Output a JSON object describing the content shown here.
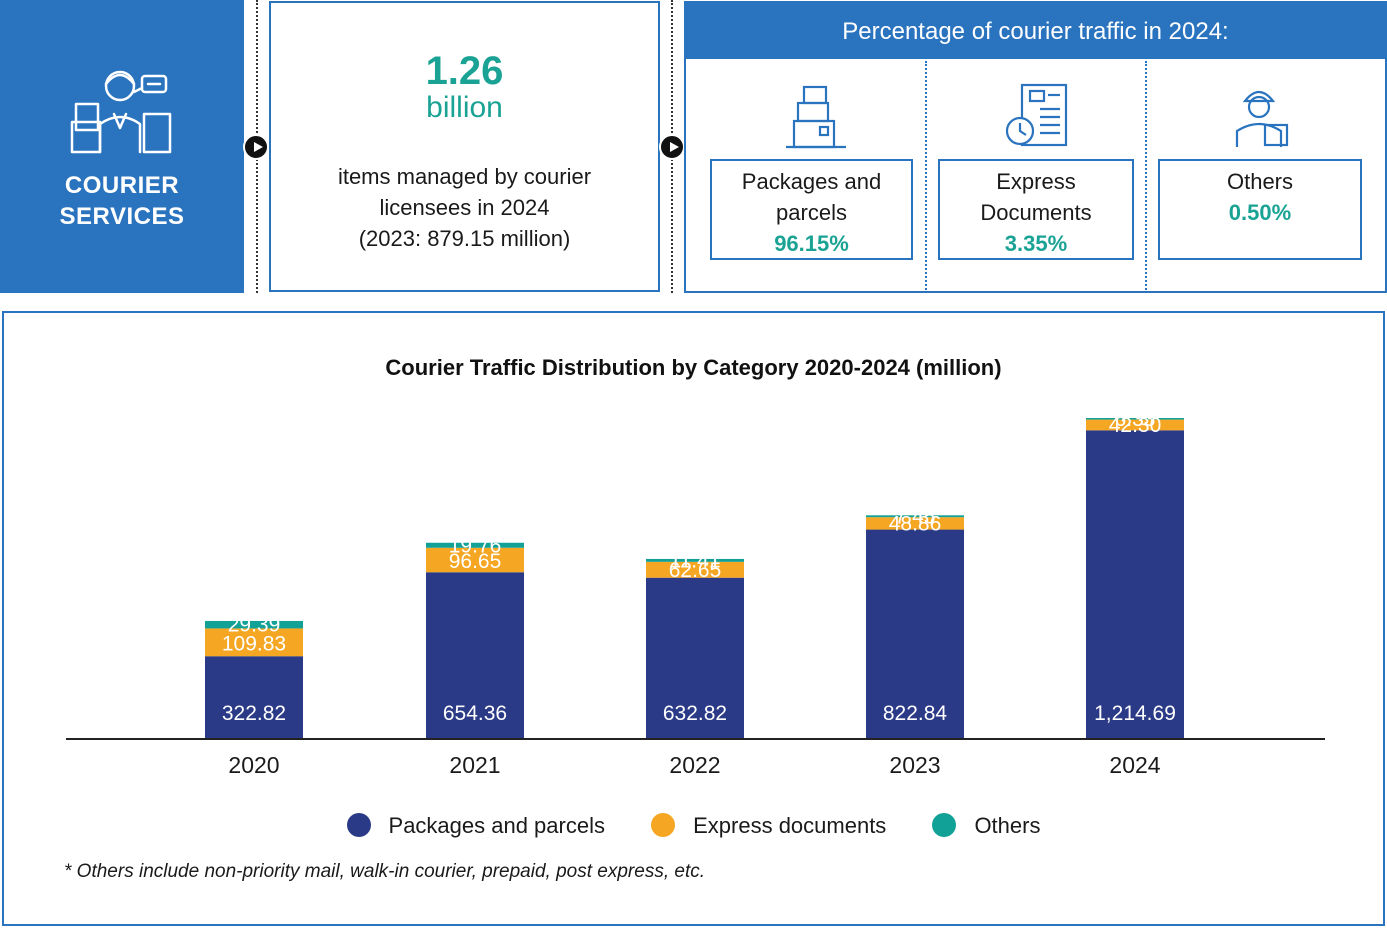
{
  "panel": {
    "title_line1": "COURIER",
    "title_line2": "SERVICES"
  },
  "stat": {
    "value": "1.26",
    "unit": "billion",
    "description": "items managed by courier\nlicensees in 2024\n(2023: 879.15 million)"
  },
  "percentage": {
    "header": "Percentage of courier traffic in 2024:",
    "cards": [
      {
        "label": "Packages and parcels",
        "value": "96.15%",
        "icon": "package-stack-icon"
      },
      {
        "label": "Express Documents",
        "value": "3.35%",
        "icon": "document-clock-icon"
      },
      {
        "label": "Others",
        "value": "0.50%",
        "icon": "courier-person-icon"
      }
    ]
  },
  "colors": {
    "brand_blue": "#2a73bf",
    "teal": "#1aa394",
    "packages": "#2b3a87",
    "express": "#f5a623",
    "others": "#12a196"
  },
  "chart_data": {
    "type": "bar",
    "stacked": true,
    "title": "Courier Traffic Distribution by Category 2020-2024 (million)",
    "categories": [
      "2020",
      "2021",
      "2022",
      "2023",
      "2024"
    ],
    "series": [
      {
        "name": "Packages and parcels",
        "values": [
          322.82,
          654.36,
          632.82,
          822.84,
          1214.69
        ],
        "labels": [
          "322.82",
          "654.36",
          "632.82",
          "822.84",
          "1,214.69"
        ]
      },
      {
        "name": "Express documents",
        "values": [
          109.83,
          96.65,
          62.65,
          48.86,
          42.3
        ],
        "labels": [
          "109.83",
          "96.65",
          "62.65",
          "48.86",
          "42.30"
        ]
      },
      {
        "name": "Others",
        "values": [
          29.39,
          19.76,
          11.41,
          7.45,
          6.33
        ],
        "labels": [
          "29.39",
          "19.76",
          "11.41",
          "7.45",
          "6.33"
        ]
      }
    ],
    "grid": false,
    "legend": "bottom"
  },
  "footnote": "* Others include non-priority mail, walk-in courier, prepaid, post express, etc."
}
